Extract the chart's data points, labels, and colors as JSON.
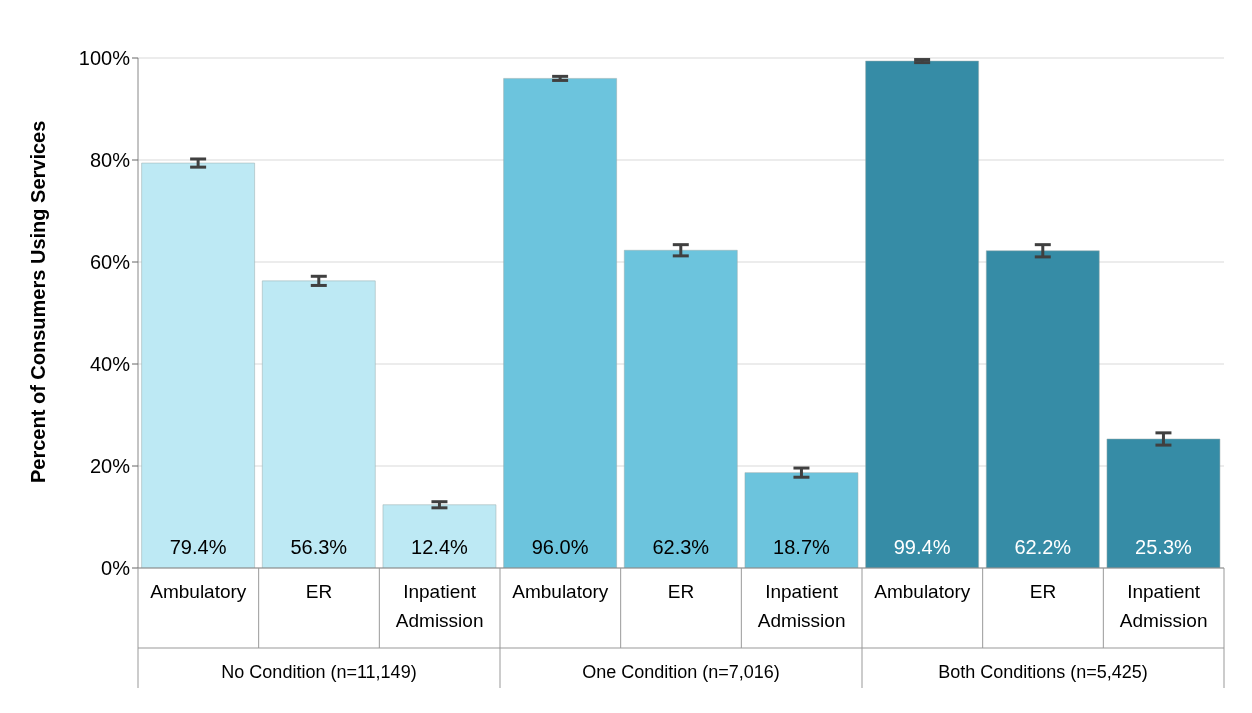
{
  "chart_data": {
    "type": "bar",
    "ylabel": "Percent of Consumers Using Services",
    "categories": [
      "Ambulatory",
      "ER",
      "Inpatient Admission",
      "Ambulatory",
      "ER",
      "Inpatient Admission",
      "Ambulatory",
      "ER",
      "Inpatient Admission"
    ],
    "values": [
      79.4,
      56.3,
      12.4,
      96.0,
      62.3,
      18.7,
      99.4,
      62.2,
      25.3
    ],
    "colors": [
      "#bde9f4",
      "#bde9f4",
      "#bde9f4",
      "#6cc4dd",
      "#6cc4dd",
      "#6cc4dd",
      "#368ca6",
      "#368ca6",
      "#368ca6"
    ],
    "errors": [
      0.8,
      0.9,
      0.6,
      0.4,
      1.1,
      0.9,
      0.3,
      1.2,
      1.2
    ],
    "value_labels": [
      "79.4%",
      "56.3%",
      "12.4%",
      "96.0%",
      "62.3%",
      "18.7%",
      "99.4%",
      "62.2%",
      "25.3%"
    ],
    "ylim": [
      0,
      100
    ],
    "yticks": [
      {
        "value": 0,
        "label": "0%"
      },
      {
        "value": 20,
        "label": "20%"
      },
      {
        "value": 40,
        "label": "40%"
      },
      {
        "value": 60,
        "label": "60%"
      },
      {
        "value": 80,
        "label": "80%"
      },
      {
        "value": 100,
        "label": "100%"
      }
    ],
    "grid": "y",
    "annotations": [
      "No Condition (n=11,149)",
      "One Condition (n=7,016)",
      "Both Conditions (n=5,425)"
    ]
  }
}
